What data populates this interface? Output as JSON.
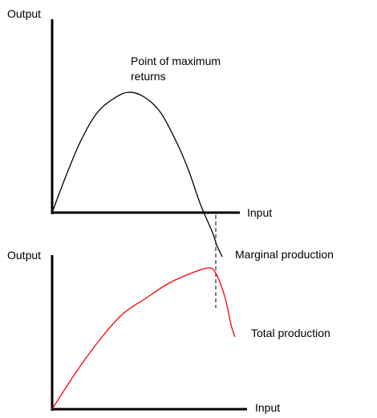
{
  "chart_data": [
    {
      "type": "line",
      "title": "",
      "ylabel": "Output",
      "xlabel": "Input",
      "annotations": [
        "Point of maximum returns"
      ],
      "series": [
        {
          "name": "Marginal production",
          "color": "#000000",
          "x": [
            0,
            15,
            35,
            55,
            75,
            95,
            115,
            135,
            155,
            170,
            185,
            200,
            205,
            212
          ],
          "y": [
            0,
            40,
            88,
            123,
            141,
            150,
            144,
            125,
            88,
            53,
            10,
            -25,
            -40,
            -55
          ]
        }
      ]
    },
    {
      "type": "line",
      "title": "",
      "ylabel": "Output",
      "xlabel": "Input",
      "series": [
        {
          "name": "Total production",
          "color": "#ff0000",
          "x": [
            0,
            30,
            60,
            90,
            120,
            150,
            175,
            200,
            210,
            222,
            230,
            235
          ],
          "y": [
            0,
            45,
            85,
            118,
            138,
            157,
            168,
            176,
            170,
            140,
            105,
            90
          ]
        }
      ]
    }
  ],
  "colors": {
    "axis": "#000000",
    "total_production": "#ff0000",
    "dashed_guide": "#000000"
  }
}
